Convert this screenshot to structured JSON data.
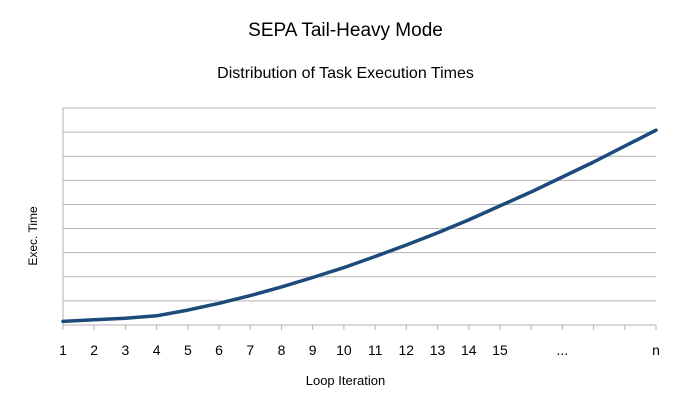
{
  "chart_data": {
    "type": "line",
    "title": "SEPA Tail-Heavy Mode",
    "subtitle": "Distribution of Task Execution Times",
    "xlabel": "Loop Iteration",
    "ylabel": "Exec. Time",
    "x_tick_labels": [
      "1",
      "2",
      "3",
      "4",
      "5",
      "6",
      "7",
      "8",
      "9",
      "10",
      "11",
      "12",
      "13",
      "14",
      "15",
      "...",
      "n"
    ],
    "x_positions": [
      1,
      2,
      3,
      4,
      5,
      6,
      7,
      8,
      9,
      10,
      11,
      12,
      13,
      14,
      15,
      17,
      20
    ],
    "xlim": [
      1,
      20
    ],
    "ylim": [
      0,
      9
    ],
    "grid": {
      "horizontal": true,
      "vertical": false
    },
    "series": [
      {
        "color": "#1c4a7a",
        "x": [
          1,
          2,
          3,
          4,
          5,
          6,
          7,
          8,
          9,
          10,
          11,
          12,
          13,
          14,
          15,
          16,
          17,
          18,
          19,
          20
        ],
        "y": [
          0.15,
          0.22,
          0.28,
          0.38,
          0.62,
          0.9,
          1.22,
          1.58,
          1.97,
          2.38,
          2.84,
          3.32,
          3.82,
          4.36,
          4.94,
          5.52,
          6.14,
          6.76,
          7.42,
          8.08
        ]
      }
    ]
  }
}
